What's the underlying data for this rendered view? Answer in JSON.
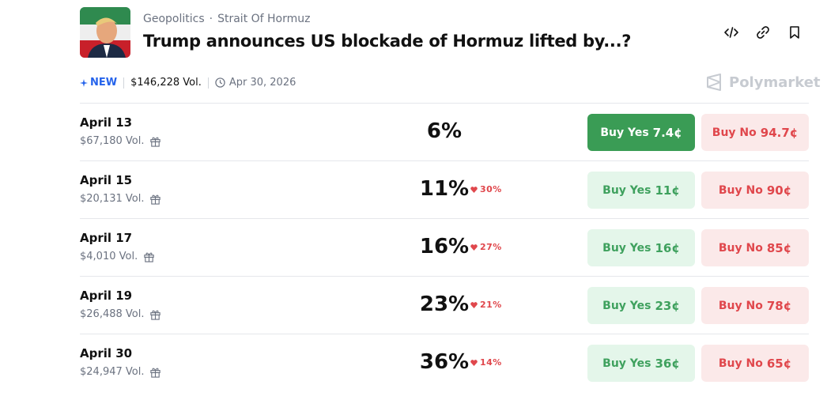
{
  "header": {
    "category": "Geopolitics",
    "separator": "·",
    "subcategory": "Strait Of Hormuz",
    "title": "Trump announces US blockade of Hormuz lifted by...?"
  },
  "meta": {
    "badge": "NEW",
    "volume": "$146,228 Vol.",
    "end_date": "Apr 30, 2026",
    "brand": "Polymarket"
  },
  "outcomes": [
    {
      "label": "April 13",
      "volume": "$67,180 Vol.",
      "chance": "6%",
      "change": null,
      "buy_yes": "Buy Yes",
      "yes_price": "7.4¢",
      "buy_no": "Buy No",
      "no_price": "94.7¢"
    },
    {
      "label": "April 15",
      "volume": "$20,131 Vol.",
      "chance": "11%",
      "change": "30%",
      "buy_yes": "Buy Yes",
      "yes_price": "11¢",
      "buy_no": "Buy No",
      "no_price": "90¢"
    },
    {
      "label": "April 17",
      "volume": "$4,010 Vol.",
      "chance": "16%",
      "change": "27%",
      "buy_yes": "Buy Yes",
      "yes_price": "16¢",
      "buy_no": "Buy No",
      "no_price": "85¢"
    },
    {
      "label": "April 19",
      "volume": "$26,488 Vol.",
      "chance": "23%",
      "change": "21%",
      "buy_yes": "Buy Yes",
      "yes_price": "23¢",
      "buy_no": "Buy No",
      "no_price": "78¢"
    },
    {
      "label": "April 30",
      "volume": "$24,947 Vol.",
      "chance": "36%",
      "change": "14%",
      "buy_yes": "Buy Yes",
      "yes_price": "36¢",
      "buy_no": "Buy No",
      "no_price": "65¢"
    }
  ]
}
